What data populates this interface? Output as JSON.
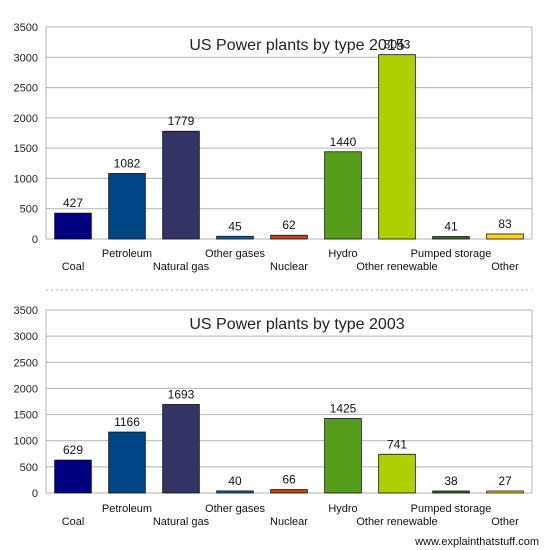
{
  "chart_data": [
    {
      "type": "bar",
      "title": "US Power plants by type 2015",
      "xlabel": "",
      "ylabel": "",
      "ylim": [
        0,
        3500
      ],
      "yticks": [
        0,
        500,
        1000,
        1500,
        2000,
        2500,
        3000,
        3500
      ],
      "grid": true,
      "categories": [
        "Coal",
        "Petroleum",
        "Natural gas",
        "Other gases",
        "Nuclear",
        "Hydro",
        "Other renewable",
        "Pumped storage",
        "Other"
      ],
      "values": [
        427,
        1082,
        1779,
        45,
        62,
        1440,
        3043,
        41,
        83
      ]
    },
    {
      "type": "bar",
      "title": "US Power plants by type 2003",
      "xlabel": "",
      "ylabel": "",
      "ylim": [
        0,
        3500
      ],
      "yticks": [
        0,
        500,
        1000,
        1500,
        2000,
        2500,
        3000,
        3500
      ],
      "grid": true,
      "categories": [
        "Coal",
        "Petroleum",
        "Natural gas",
        "Other gases",
        "Nuclear",
        "Hydro",
        "Other renewable",
        "Pumped storage",
        "Other"
      ],
      "values": [
        629,
        1166,
        1693,
        40,
        66,
        1425,
        741,
        38,
        27
      ]
    }
  ],
  "bar_colors": [
    "#000080",
    "#004586",
    "#333366",
    "#1a5fa8",
    "#c9421e",
    "#579d1c",
    "#aecf00",
    "#3a6b2a",
    "#ffd320"
  ],
  "credit": "www.explainthatstuff.com"
}
